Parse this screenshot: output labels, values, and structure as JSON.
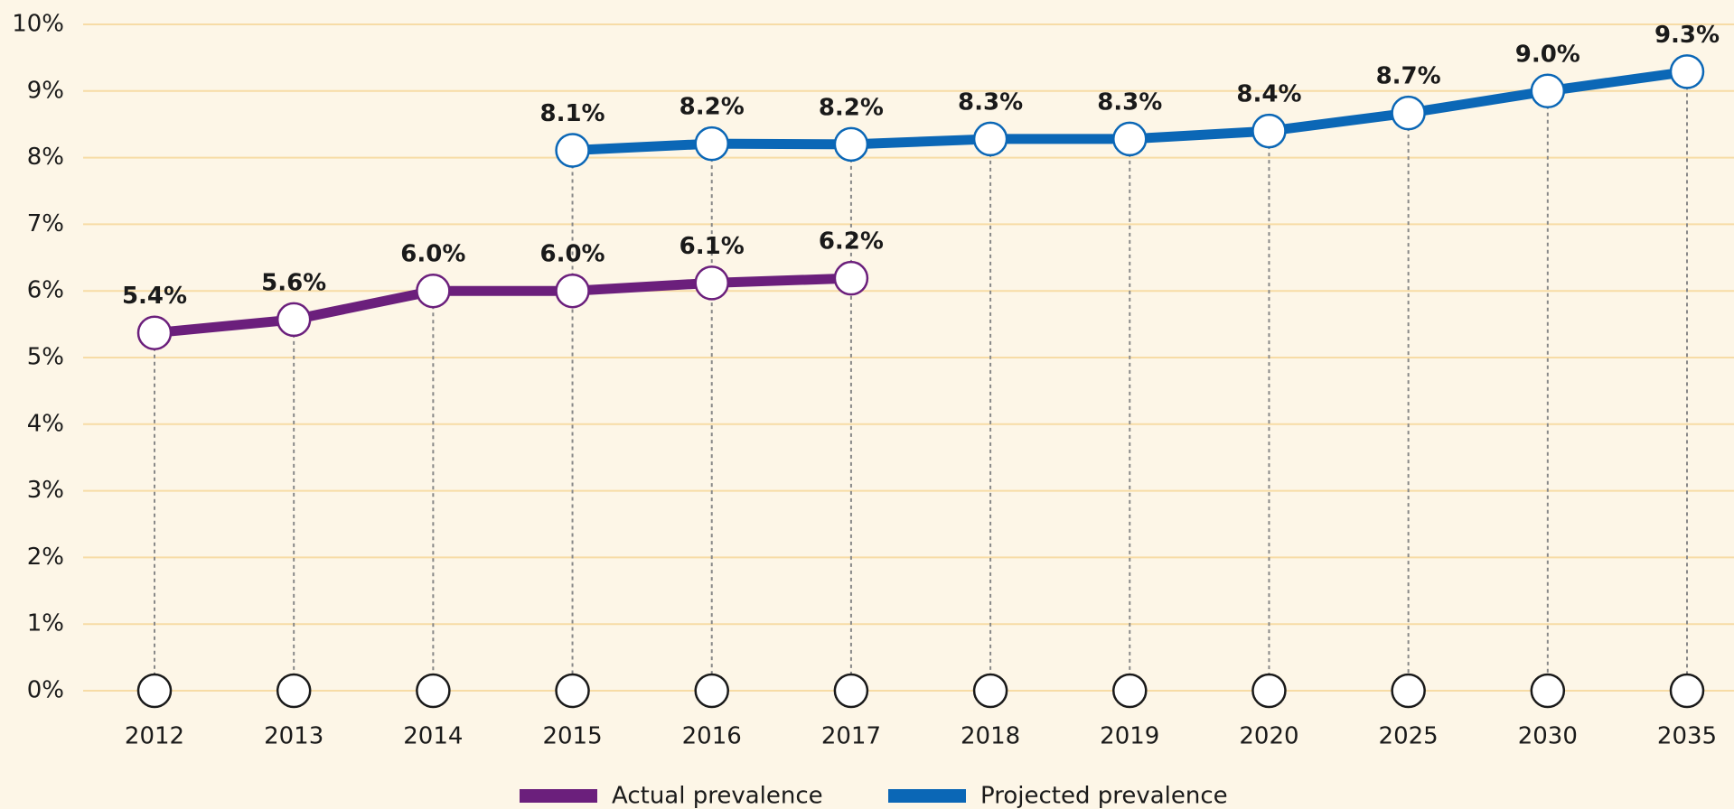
{
  "chart_data": {
    "type": "line",
    "categories": [
      "2012",
      "2013",
      "2014",
      "2015",
      "2016",
      "2017",
      "2018",
      "2019",
      "2020",
      "2025",
      "2030",
      "2035"
    ],
    "series": [
      {
        "name": "Actual prevalence",
        "color": "#6b1f7c",
        "values": [
          5.37,
          5.57,
          6.0,
          6.0,
          6.12,
          6.19,
          null,
          null,
          null,
          null,
          null,
          null
        ],
        "value_labels": [
          "5.4%",
          "5.6%",
          "6.0%",
          "6.0%",
          "6.1%",
          "6.2%",
          null,
          null,
          null,
          null,
          null,
          null
        ]
      },
      {
        "name": "Projected prevalence",
        "color": "#0b67b6",
        "values": [
          null,
          null,
          null,
          8.11,
          8.21,
          8.2,
          8.28,
          8.28,
          8.4,
          8.67,
          9.0,
          9.29
        ],
        "value_labels": [
          null,
          null,
          null,
          "8.1%",
          "8.2%",
          "8.2%",
          "8.3%",
          "8.3%",
          "8.4%",
          "8.7%",
          "9.0%",
          "9.3%"
        ]
      }
    ],
    "ylim": [
      0,
      10
    ],
    "yticks": [
      {
        "value": 0,
        "label": "0%"
      },
      {
        "value": 1,
        "label": "1%"
      },
      {
        "value": 2,
        "label": "2%"
      },
      {
        "value": 3,
        "label": "3%"
      },
      {
        "value": 4,
        "label": "4%"
      },
      {
        "value": 5,
        "label": "5%"
      },
      {
        "value": 6,
        "label": "6%"
      },
      {
        "value": 7,
        "label": "7%"
      },
      {
        "value": 8,
        "label": "8%"
      },
      {
        "value": 9,
        "label": "9%"
      },
      {
        "value": 10,
        "label": "10%"
      }
    ],
    "grid": true,
    "legend": "bottom"
  }
}
